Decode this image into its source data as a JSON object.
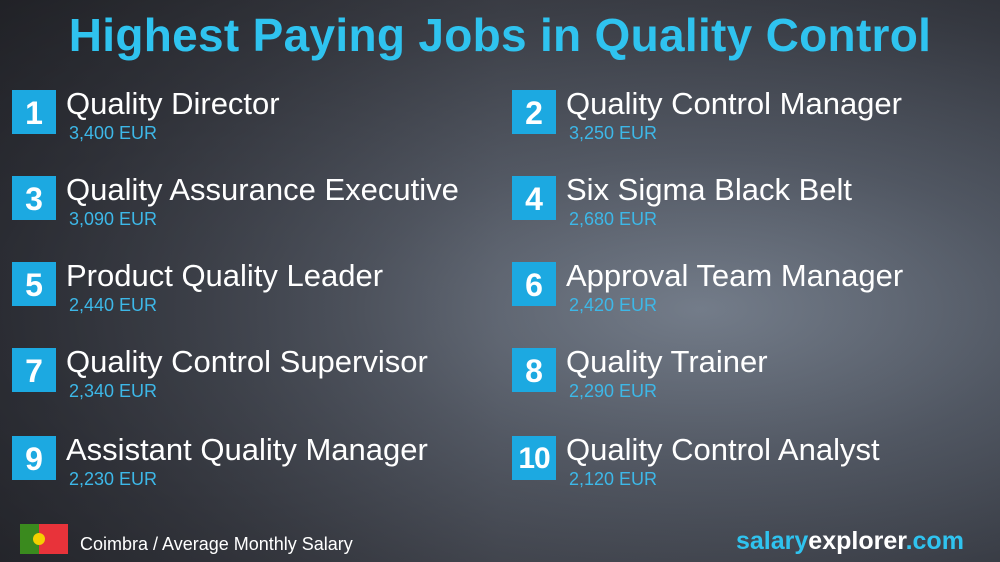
{
  "title": "Highest Paying Jobs in Quality Control",
  "jobs": [
    {
      "rank": "1",
      "name": "Quality Director",
      "salary": "3,400 EUR"
    },
    {
      "rank": "2",
      "name": "Quality Control Manager",
      "salary": "3,250 EUR"
    },
    {
      "rank": "3",
      "name": "Quality Assurance Executive",
      "salary": "3,090 EUR"
    },
    {
      "rank": "4",
      "name": "Six Sigma Black Belt",
      "salary": "2,680 EUR"
    },
    {
      "rank": "5",
      "name": "Product Quality Leader",
      "salary": "2,440 EUR"
    },
    {
      "rank": "6",
      "name": "Approval Team Manager",
      "salary": "2,420 EUR"
    },
    {
      "rank": "7",
      "name": "Quality Control Supervisor",
      "salary": "2,340 EUR"
    },
    {
      "rank": "8",
      "name": "Quality Trainer",
      "salary": "2,290 EUR"
    },
    {
      "rank": "9",
      "name": "Assistant Quality Manager",
      "salary": "2,230 EUR"
    },
    {
      "rank": "10",
      "name": "Quality Control Analyst",
      "salary": "2,120 EUR"
    }
  ],
  "footer": {
    "flag_icon": "portugal-flag",
    "location": "Coimbra / Average Monthly Salary",
    "brand_part1": "salary",
    "brand_part2": "explorer",
    "brand_part3": ".com"
  },
  "colors": {
    "accent": "#2fc3ef",
    "badge": "#1ca9e1"
  }
}
